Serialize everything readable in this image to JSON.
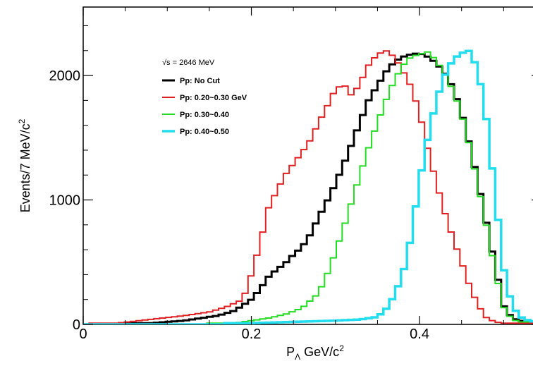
{
  "chart_data": {
    "type": "line",
    "xlabel_main": "P",
    "xlabel_sub": "Λ",
    "xlabel_unit": " GeV/c",
    "xlabel_sup": "2",
    "ylabel_main": "Events/7 MeV/c",
    "ylabel_sup": "2",
    "xlim": [
      0.0,
      0.545
    ],
    "ylim": [
      0,
      2550
    ],
    "x_ticks": [
      {
        "value": 0.0,
        "label": "0"
      },
      {
        "value": 0.2,
        "label": "0.2"
      },
      {
        "value": 0.4,
        "label": "0.4"
      }
    ],
    "y_ticks": [
      {
        "value": 0,
        "label": "0"
      },
      {
        "value": 1000,
        "label": "1000"
      },
      {
        "value": 2000,
        "label": "2000"
      }
    ],
    "legend_header": "√s = 2646 MeV",
    "bin_width": 0.007,
    "series": [
      {
        "name": "Pp: No Cut",
        "color": "#000000",
        "x": [
          0.08,
          0.1,
          0.12,
          0.14,
          0.16,
          0.18,
          0.2,
          0.21,
          0.22,
          0.23,
          0.24,
          0.25,
          0.26,
          0.27,
          0.28,
          0.29,
          0.3,
          0.31,
          0.32,
          0.33,
          0.34,
          0.35,
          0.36,
          0.37,
          0.38,
          0.39,
          0.4,
          0.41,
          0.42,
          0.43,
          0.44,
          0.45,
          0.46,
          0.47,
          0.48,
          0.49,
          0.5,
          0.51,
          0.52,
          0.53,
          0.54
        ],
        "y": [
          10,
          20,
          30,
          50,
          70,
          110,
          200,
          280,
          380,
          440,
          490,
          560,
          620,
          720,
          860,
          990,
          1130,
          1290,
          1460,
          1640,
          1810,
          1920,
          2030,
          2110,
          2150,
          2170,
          2180,
          2150,
          2100,
          2020,
          1900,
          1700,
          1430,
          1130,
          800,
          470,
          150,
          50,
          30,
          20,
          10
        ]
      },
      {
        "name": "Pp: 0.20~0.30 GeV",
        "color": "#e02020",
        "x": [
          0.04,
          0.08,
          0.12,
          0.15,
          0.17,
          0.19,
          0.2,
          0.21,
          0.22,
          0.23,
          0.24,
          0.25,
          0.26,
          0.27,
          0.28,
          0.29,
          0.3,
          0.31,
          0.32,
          0.33,
          0.34,
          0.35,
          0.36,
          0.37,
          0.38,
          0.39,
          0.4,
          0.41,
          0.42,
          0.43,
          0.44,
          0.45,
          0.46,
          0.47,
          0.48,
          0.49,
          0.5
        ],
        "y": [
          10,
          40,
          70,
          100,
          140,
          200,
          400,
          640,
          930,
          1070,
          1200,
          1290,
          1380,
          1480,
          1620,
          1750,
          1890,
          1930,
          1830,
          1950,
          2090,
          2170,
          2200,
          2150,
          2040,
          1910,
          1700,
          1400,
          1140,
          900,
          690,
          500,
          300,
          150,
          50,
          20,
          10
        ]
      },
      {
        "name": "Pp: 0.30~0.40",
        "color": "#22dd22",
        "x": [
          0.18,
          0.2,
          0.22,
          0.24,
          0.26,
          0.28,
          0.29,
          0.3,
          0.31,
          0.32,
          0.33,
          0.34,
          0.35,
          0.36,
          0.37,
          0.38,
          0.39,
          0.4,
          0.41,
          0.42,
          0.43,
          0.44,
          0.45,
          0.46,
          0.47,
          0.48,
          0.49,
          0.5,
          0.51,
          0.52
        ],
        "y": [
          10,
          30,
          50,
          80,
          130,
          250,
          400,
          580,
          780,
          1000,
          1220,
          1430,
          1620,
          1800,
          1960,
          2080,
          2150,
          2170,
          2190,
          2120,
          2010,
          1880,
          1690,
          1420,
          1110,
          780,
          430,
          140,
          40,
          20
        ]
      },
      {
        "name": "Pp: 0.40~0.50",
        "color": "#22ddee",
        "x": [
          0.2,
          0.25,
          0.3,
          0.33,
          0.35,
          0.36,
          0.37,
          0.38,
          0.39,
          0.4,
          0.41,
          0.42,
          0.43,
          0.44,
          0.45,
          0.46,
          0.47,
          0.48,
          0.49,
          0.5,
          0.51,
          0.52,
          0.53,
          0.54
        ],
        "y": [
          10,
          20,
          30,
          40,
          60,
          120,
          230,
          400,
          700,
          1150,
          1500,
          1800,
          2000,
          2130,
          2180,
          2200,
          2030,
          1630,
          1050,
          450,
          150,
          60,
          30,
          20
        ]
      }
    ]
  }
}
